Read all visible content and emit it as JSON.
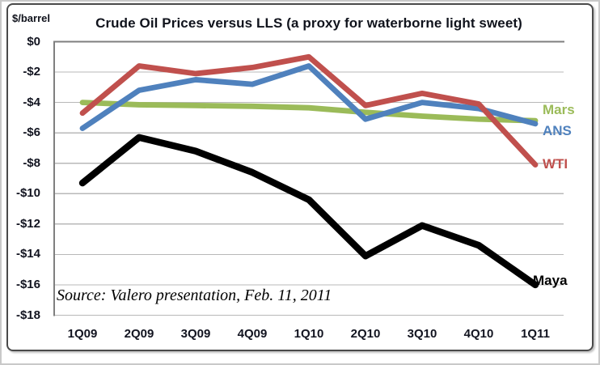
{
  "chart_data": {
    "type": "line",
    "title": "Crude Oil Prices versus LLS (a proxy for waterborne light sweet)",
    "ylabel": "$/barrel",
    "source_note": "Source: Valero presentation, Feb. 11, 2011",
    "categories": [
      "1Q09",
      "2Q09",
      "3Q09",
      "4Q09",
      "1Q10",
      "2Q10",
      "3Q10",
      "4Q10",
      "1Q11"
    ],
    "y_ticks": [
      "$0",
      "-$2",
      "-$4",
      "-$6",
      "-$8",
      "-$10",
      "-$12",
      "-$14",
      "-$16",
      "-$18"
    ],
    "ylim": [
      -18,
      0
    ],
    "grid": true,
    "legend_position": "end-of-line-right",
    "colors": {
      "gridline": "#b8b8b8",
      "axis": "#7f7f7f"
    },
    "series": [
      {
        "name": "Mars",
        "color": "#9BBB59",
        "values": [
          -4.0,
          -4.15,
          -4.2,
          -4.25,
          -4.35,
          -4.65,
          -4.9,
          -5.1,
          -5.2
        ]
      },
      {
        "name": "ANS",
        "color": "#4F81BD",
        "values": [
          -5.7,
          -3.2,
          -2.5,
          -2.8,
          -1.6,
          -5.1,
          -4.0,
          -4.4,
          -5.4
        ]
      },
      {
        "name": "WTI",
        "color": "#C0504D",
        "values": [
          -4.7,
          -1.6,
          -2.1,
          -1.7,
          -1.0,
          -4.2,
          -3.4,
          -4.1,
          -8.1
        ]
      },
      {
        "name": "Maya",
        "color": "#000000",
        "values": [
          -9.3,
          -6.3,
          -7.2,
          -8.6,
          -10.4,
          -14.1,
          -12.1,
          -13.4,
          -16.0
        ]
      }
    ]
  }
}
